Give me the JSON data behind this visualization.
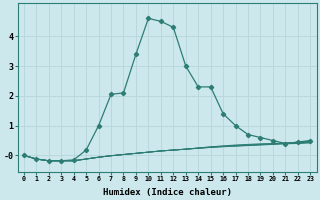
{
  "xlabel": "Humidex (Indice chaleur)",
  "background_color": "#cce8ec",
  "grid_color": "#b8d8dc",
  "line_color": "#2d7d74",
  "xlim": [
    -0.5,
    23.5
  ],
  "ylim": [
    -0.55,
    5.1
  ],
  "x_ticks": [
    0,
    1,
    2,
    3,
    4,
    5,
    6,
    7,
    8,
    9,
    10,
    11,
    12,
    13,
    14,
    15,
    16,
    17,
    18,
    19,
    20,
    21,
    22,
    23
  ],
  "y_ticks": [
    0,
    1,
    2,
    3,
    4
  ],
  "y_tick_labels": [
    "-0",
    "1",
    "2",
    "3",
    "4"
  ],
  "main_x": [
    0,
    1,
    2,
    3,
    4,
    5,
    6,
    7,
    8,
    9,
    10,
    11,
    12,
    13,
    14,
    15,
    16,
    17,
    18,
    19,
    20,
    21,
    22,
    23
  ],
  "main_y": [
    0.0,
    -0.12,
    -0.18,
    -0.18,
    -0.15,
    0.18,
    1.0,
    2.05,
    2.1,
    3.4,
    4.6,
    4.5,
    4.3,
    3.0,
    2.3,
    2.3,
    1.4,
    1.0,
    0.7,
    0.6,
    0.5,
    0.4,
    0.45,
    0.5
  ],
  "flat_lines_y": [
    [
      0.0,
      -0.12,
      -0.18,
      -0.18,
      -0.18,
      -0.12,
      -0.06,
      -0.01,
      0.03,
      0.07,
      0.11,
      0.15,
      0.18,
      0.21,
      0.24,
      0.27,
      0.29,
      0.31,
      0.33,
      0.35,
      0.37,
      0.39,
      0.4,
      0.42
    ],
    [
      0.0,
      -0.12,
      -0.18,
      -0.18,
      -0.18,
      -0.12,
      -0.06,
      -0.01,
      0.03,
      0.07,
      0.11,
      0.15,
      0.18,
      0.21,
      0.24,
      0.27,
      0.3,
      0.32,
      0.34,
      0.36,
      0.38,
      0.4,
      0.41,
      0.44
    ],
    [
      0.0,
      -0.12,
      -0.18,
      -0.18,
      -0.18,
      -0.12,
      -0.06,
      -0.01,
      0.03,
      0.07,
      0.11,
      0.15,
      0.18,
      0.21,
      0.25,
      0.28,
      0.31,
      0.33,
      0.35,
      0.37,
      0.39,
      0.41,
      0.42,
      0.46
    ],
    [
      0.0,
      -0.12,
      -0.18,
      -0.18,
      -0.18,
      -0.12,
      -0.06,
      -0.01,
      0.03,
      0.07,
      0.11,
      0.15,
      0.18,
      0.21,
      0.25,
      0.29,
      0.32,
      0.35,
      0.37,
      0.39,
      0.4,
      0.42,
      0.44,
      0.48
    ]
  ]
}
